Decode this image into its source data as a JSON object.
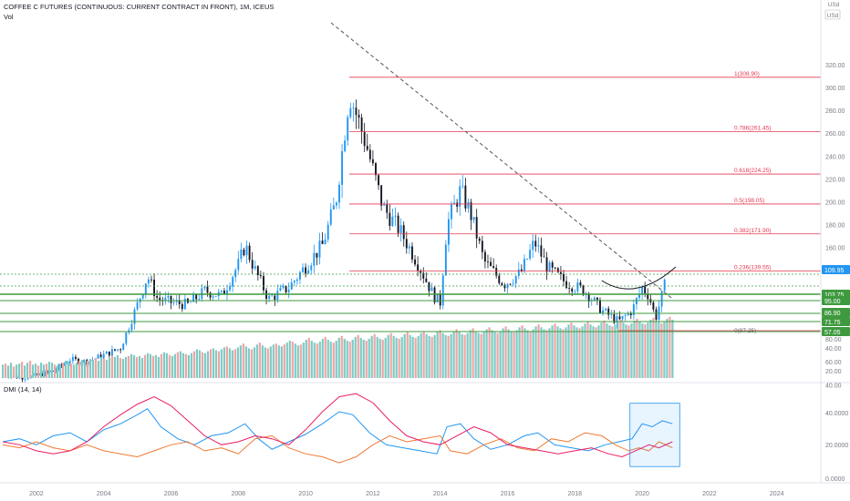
{
  "header": {
    "title": "COFFEE C FUTURES (CONTINUOUS: CURRENT CONTRACT IN FRONT), 1M, ICEUS",
    "vol_label": "Vol",
    "currency_label": "USd",
    "currency_unit": "USd"
  },
  "dmi_label": "DMI (14, 14)",
  "colors": {
    "up": "#2196f3",
    "down": "#131722",
    "fib": "#e53950",
    "trend": "#555555",
    "support": "#3f9a3f",
    "vol_up": "#7fcbc4",
    "vol_down": "#f4a3a3",
    "di_plus": "#2196f3",
    "di_minus": "#f07a32",
    "adx": "#e91e63",
    "axis_text": "#787b86"
  },
  "chart_data": [
    {
      "type": "candlestick",
      "title": "COFFEE C FUTURES (CONTINUOUS: CURRENT CONTRACT IN FRONT), 1M, ICEUS",
      "interval": "1M",
      "x_axis": {
        "range": [
          2001.0,
          2025.3
        ],
        "ticks": [
          "2002",
          "2004",
          "2006",
          "2008",
          "2010",
          "2012",
          "2014",
          "2016",
          "2018",
          "2020",
          "2022",
          "2024"
        ]
      },
      "y_axis": {
        "range": [
          0,
          340
        ],
        "ticks": [
          40,
          60,
          80,
          100,
          120,
          140,
          160,
          180,
          200,
          220,
          240,
          260,
          280,
          300,
          320
        ],
        "unit": "USd",
        "position": "right"
      },
      "price_path": [
        [
          2001.0,
          50
        ],
        [
          2001.5,
          46
        ],
        [
          2002.0,
          48
        ],
        [
          2002.5,
          52
        ],
        [
          2003.0,
          62
        ],
        [
          2003.5,
          60
        ],
        [
          2004.0,
          66
        ],
        [
          2004.5,
          72
        ],
        [
          2005.0,
          110
        ],
        [
          2005.3,
          135
        ],
        [
          2005.6,
          115
        ],
        [
          2006.0,
          112
        ],
        [
          2006.5,
          110
        ],
        [
          2007.0,
          122
        ],
        [
          2007.5,
          118
        ],
        [
          2008.0,
          145
        ],
        [
          2008.2,
          162
        ],
        [
          2008.5,
          140
        ],
        [
          2008.9,
          115
        ],
        [
          2009.5,
          125
        ],
        [
          2009.9,
          140
        ],
        [
          2010.5,
          162
        ],
        [
          2010.9,
          200
        ],
        [
          2011.3,
          295
        ],
        [
          2011.8,
          250
        ],
        [
          2012.3,
          195
        ],
        [
          2012.8,
          175
        ],
        [
          2013.3,
          148
        ],
        [
          2013.8,
          118
        ],
        [
          2014.0,
          112
        ],
        [
          2014.2,
          180
        ],
        [
          2014.6,
          210
        ],
        [
          2014.9,
          190
        ],
        [
          2015.3,
          148
        ],
        [
          2015.9,
          128
        ],
        [
          2016.4,
          138
        ],
        [
          2016.8,
          165
        ],
        [
          2017.2,
          142
        ],
        [
          2017.7,
          130
        ],
        [
          2018.3,
          122
        ],
        [
          2018.8,
          105
        ],
        [
          2019.3,
          95
        ],
        [
          2019.7,
          105
        ],
        [
          2020.0,
          125
        ],
        [
          2020.2,
          118
        ],
        [
          2020.4,
          98
        ],
        [
          2020.7,
          130
        ]
      ],
      "fibonacci": [
        {
          "level": "1",
          "price": 308.9,
          "label": "1(308.90)"
        },
        {
          "level": "0.786",
          "price": 261.45,
          "label": "0.786(261.45)"
        },
        {
          "level": "0.618",
          "price": 224.25,
          "label": "0.618(224.25)"
        },
        {
          "level": "0.5",
          "price": 198.05,
          "label": "0.5(198.05)"
        },
        {
          "level": "0.382",
          "price": 171.9,
          "label": "0.382(171.90)"
        },
        {
          "level": "0.236",
          "price": 139.55,
          "label": "0.236(139.55)"
        },
        {
          "level": "0",
          "price": 87.25,
          "label": "0(87.25)"
        }
      ],
      "price_tags": [
        {
          "value": "109.95",
          "kind": "current-price"
        },
        {
          "value": "103.75",
          "kind": "support"
        },
        {
          "value": "95.00",
          "kind": "support"
        },
        {
          "value": "86.90",
          "kind": "support"
        },
        {
          "value": "71.75",
          "kind": "support"
        },
        {
          "value": "57.05",
          "kind": "support"
        }
      ],
      "support_levels": [
        103.75,
        95.0,
        86.9,
        71.75,
        57.05
      ],
      "dotted_lines": [
        109.95,
        94.0
      ],
      "trendline": {
        "from": [
          2011.0,
          320
        ],
        "to": [
          2020.9,
          75
        ],
        "style": "dashed"
      },
      "arc": {
        "from": [
          2018.8,
          97
        ],
        "to": [
          2021.0,
          118
        ],
        "bottom": [
          2019.8,
          85
        ]
      }
    },
    {
      "type": "bar",
      "name": "Vol",
      "y_axis": {
        "ticks": [
          40.0,
          20.0
        ]
      },
      "dates_range": [
        2001.0,
        2020.9
      ],
      "values": [
        14,
        15,
        13,
        16,
        12,
        14,
        15,
        17,
        13,
        16,
        18,
        14,
        15,
        13,
        16,
        14,
        15,
        17,
        16,
        14,
        13,
        15,
        16,
        18,
        17,
        15,
        14,
        16,
        18,
        19,
        17,
        18,
        20,
        19,
        21,
        18,
        22,
        20,
        19,
        21,
        23,
        22,
        24,
        21,
        20,
        22,
        23,
        25,
        24,
        22,
        23,
        21,
        24,
        26,
        25,
        23,
        24,
        22,
        25,
        27,
        26,
        24,
        23,
        25,
        27,
        28,
        26,
        25,
        24,
        26,
        28,
        30,
        29,
        27,
        26,
        28,
        30,
        31,
        29,
        28,
        30,
        32,
        33,
        31,
        29,
        30,
        32,
        34,
        36,
        33,
        31,
        30,
        32,
        35,
        37,
        34,
        32,
        31,
        33,
        35,
        36,
        34,
        33,
        35,
        37,
        39,
        38,
        36,
        34,
        35,
        37,
        40,
        42,
        39,
        37,
        36,
        38,
        41,
        43,
        40,
        38,
        37,
        39,
        42,
        44,
        41,
        39,
        38,
        40,
        43,
        45,
        42,
        40,
        39,
        41,
        44,
        46,
        43,
        41,
        40,
        42,
        45,
        47,
        44,
        42,
        41,
        43,
        46,
        48,
        45,
        43,
        42,
        44,
        47,
        49,
        46,
        44,
        43,
        45,
        48,
        50,
        47,
        45,
        44,
        46,
        49,
        51,
        48,
        46,
        45,
        47,
        50,
        52,
        49,
        47,
        46,
        48,
        51,
        53,
        50,
        48,
        47,
        49,
        52,
        54,
        51,
        49,
        48,
        50,
        53,
        55,
        52,
        50,
        49,
        51,
        54,
        56,
        53,
        51,
        50,
        52,
        55,
        57,
        54,
        52,
        51,
        53,
        56,
        58,
        55,
        53,
        52,
        54,
        57,
        59,
        56,
        54,
        53,
        55,
        58,
        60,
        57,
        55,
        54,
        56,
        59,
        61,
        58,
        56,
        55,
        57,
        60,
        62,
        59,
        57,
        56,
        58,
        61,
        63,
        60,
        58,
        57,
        59,
        62,
        64,
        61
      ]
    },
    {
      "type": "line",
      "name": "DMI (14, 14)",
      "y_axis": {
        "ticks": [
          "40.0000",
          "20.0000",
          "0.0000"
        ],
        "range": [
          0,
          50
        ]
      },
      "series": [
        {
          "name": "+DI",
          "color": "#2196f3",
          "points": [
            [
              2001.0,
              20
            ],
            [
              2001.5,
              22
            ],
            [
              2002.0,
              18
            ],
            [
              2002.5,
              24
            ],
            [
              2003.0,
              26
            ],
            [
              2003.5,
              20
            ],
            [
              2004.0,
              28
            ],
            [
              2004.5,
              32
            ],
            [
              2005.0,
              38
            ],
            [
              2005.3,
              42
            ],
            [
              2005.7,
              30
            ],
            [
              2006.2,
              22
            ],
            [
              2006.7,
              18
            ],
            [
              2007.2,
              24
            ],
            [
              2007.7,
              26
            ],
            [
              2008.2,
              32
            ],
            [
              2008.6,
              22
            ],
            [
              2009.0,
              15
            ],
            [
              2009.5,
              20
            ],
            [
              2010.0,
              25
            ],
            [
              2010.5,
              32
            ],
            [
              2011.0,
              40
            ],
            [
              2011.4,
              38
            ],
            [
              2011.9,
              26
            ],
            [
              2012.4,
              18
            ],
            [
              2012.9,
              16
            ],
            [
              2013.4,
              14
            ],
            [
              2013.9,
              12
            ],
            [
              2014.2,
              30
            ],
            [
              2014.6,
              32
            ],
            [
              2015.0,
              22
            ],
            [
              2015.5,
              15
            ],
            [
              2016.0,
              18
            ],
            [
              2016.5,
              24
            ],
            [
              2016.9,
              26
            ],
            [
              2017.4,
              18
            ],
            [
              2017.9,
              16
            ],
            [
              2018.4,
              14
            ],
            [
              2018.9,
              18
            ],
            [
              2019.3,
              20
            ],
            [
              2019.7,
              22
            ],
            [
              2020.0,
              32
            ],
            [
              2020.3,
              30
            ],
            [
              2020.6,
              34
            ],
            [
              2020.9,
              32
            ]
          ]
        },
        {
          "name": "-DI",
          "color": "#f07a32",
          "points": [
            [
              2001.0,
              18
            ],
            [
              2001.5,
              16
            ],
            [
              2002.0,
              20
            ],
            [
              2002.5,
              16
            ],
            [
              2003.0,
              14
            ],
            [
              2003.5,
              18
            ],
            [
              2004.0,
              14
            ],
            [
              2004.5,
              12
            ],
            [
              2005.0,
              10
            ],
            [
              2005.5,
              14
            ],
            [
              2006.0,
              18
            ],
            [
              2006.5,
              20
            ],
            [
              2007.0,
              14
            ],
            [
              2007.5,
              16
            ],
            [
              2008.0,
              12
            ],
            [
              2008.5,
              22
            ],
            [
              2009.0,
              24
            ],
            [
              2009.5,
              16
            ],
            [
              2010.0,
              12
            ],
            [
              2010.5,
              10
            ],
            [
              2011.0,
              6
            ],
            [
              2011.5,
              10
            ],
            [
              2012.0,
              18
            ],
            [
              2012.5,
              24
            ],
            [
              2013.0,
              20
            ],
            [
              2013.5,
              22
            ],
            [
              2014.0,
              24
            ],
            [
              2014.3,
              14
            ],
            [
              2014.8,
              12
            ],
            [
              2015.3,
              18
            ],
            [
              2015.8,
              22
            ],
            [
              2016.3,
              16
            ],
            [
              2016.8,
              14
            ],
            [
              2017.3,
              22
            ],
            [
              2017.8,
              20
            ],
            [
              2018.3,
              26
            ],
            [
              2018.8,
              24
            ],
            [
              2019.2,
              18
            ],
            [
              2019.6,
              14
            ],
            [
              2019.9,
              16
            ],
            [
              2020.2,
              14
            ],
            [
              2020.5,
              20
            ],
            [
              2020.9,
              16
            ]
          ]
        },
        {
          "name": "ADX",
          "color": "#e91e63",
          "points": [
            [
              2001.0,
              20
            ],
            [
              2001.5,
              18
            ],
            [
              2002.0,
              14
            ],
            [
              2002.5,
              12
            ],
            [
              2003.0,
              14
            ],
            [
              2003.5,
              20
            ],
            [
              2004.0,
              30
            ],
            [
              2004.5,
              38
            ],
            [
              2005.0,
              45
            ],
            [
              2005.5,
              50
            ],
            [
              2006.0,
              44
            ],
            [
              2006.5,
              34
            ],
            [
              2007.0,
              24
            ],
            [
              2007.5,
              18
            ],
            [
              2008.0,
              20
            ],
            [
              2008.5,
              24
            ],
            [
              2009.0,
              22
            ],
            [
              2009.5,
              18
            ],
            [
              2010.0,
              28
            ],
            [
              2010.5,
              40
            ],
            [
              2011.0,
              50
            ],
            [
              2011.5,
              52
            ],
            [
              2012.0,
              46
            ],
            [
              2012.5,
              34
            ],
            [
              2013.0,
              24
            ],
            [
              2013.5,
              20
            ],
            [
              2014.0,
              18
            ],
            [
              2014.5,
              24
            ],
            [
              2015.0,
              30
            ],
            [
              2015.5,
              26
            ],
            [
              2016.0,
              18
            ],
            [
              2016.5,
              16
            ],
            [
              2017.0,
              14
            ],
            [
              2017.5,
              12
            ],
            [
              2018.0,
              14
            ],
            [
              2018.5,
              16
            ],
            [
              2019.0,
              12
            ],
            [
              2019.4,
              10
            ],
            [
              2019.8,
              14
            ],
            [
              2020.2,
              18
            ],
            [
              2020.5,
              16
            ],
            [
              2020.9,
              20
            ]
          ]
        }
      ],
      "highlight_box": {
        "x": [
          2019.8,
          2020.9
        ],
        "y": [
          12,
          42
        ]
      }
    }
  ]
}
